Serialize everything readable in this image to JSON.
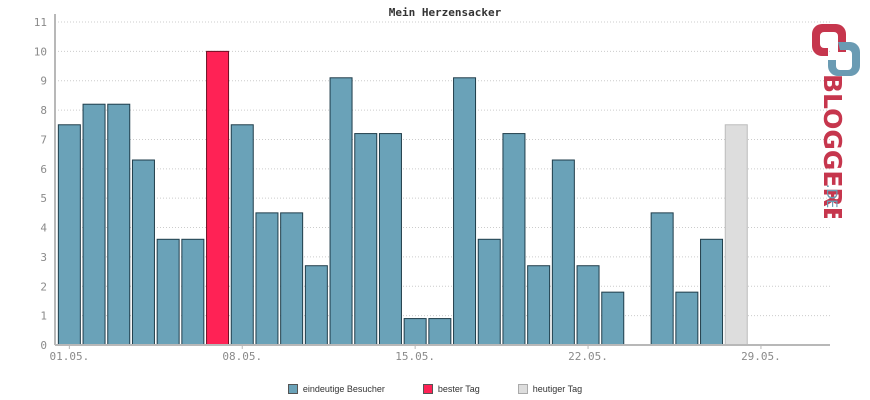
{
  "colors": {
    "visitor": "#6aa2b8",
    "best": "#ff2255",
    "today": "#dddddd",
    "grid": "#cccccc",
    "axis": "#b8b8b8"
  },
  "legend": {
    "visitor": "eindeutige Besucher",
    "best": "bester Tag",
    "today": "heutiger Tag"
  },
  "logo": {
    "name": "BLOGGEREI",
    "suffix": ".DE"
  },
  "chart_data": {
    "type": "bar",
    "title": "Mein Herzensacker",
    "ylim": [
      0,
      11
    ],
    "yticks": [
      0,
      1,
      2,
      3,
      4,
      5,
      6,
      7,
      8,
      9,
      10,
      11
    ],
    "x_tick_labels": [
      "01.05.",
      "08.05.",
      "15.05.",
      "22.05.",
      "29.05."
    ],
    "x_tick_days": [
      1,
      8,
      15,
      22,
      29
    ],
    "grid": true,
    "legend_position": "bottom",
    "days": [
      1,
      2,
      3,
      4,
      5,
      6,
      7,
      8,
      9,
      10,
      11,
      12,
      13,
      14,
      15,
      16,
      17,
      18,
      19,
      20,
      21,
      22,
      23,
      24,
      25,
      26,
      27,
      28,
      29,
      30,
      31
    ],
    "values": [
      7.5,
      8.2,
      8.2,
      6.3,
      3.6,
      3.6,
      10,
      7.5,
      4.5,
      4.5,
      2.7,
      9.1,
      7.2,
      7.2,
      0.9,
      0.9,
      9.1,
      3.6,
      7.2,
      2.7,
      6.3,
      2.7,
      1.8,
      0,
      4.5,
      1.8,
      3.6,
      7.5,
      0,
      0,
      0
    ],
    "kinds": [
      "v",
      "v",
      "v",
      "v",
      "v",
      "v",
      "best",
      "v",
      "v",
      "v",
      "v",
      "v",
      "v",
      "v",
      "v",
      "v",
      "v",
      "v",
      "v",
      "v",
      "v",
      "v",
      "v",
      "v",
      "v",
      "v",
      "v",
      "today",
      "v",
      "v",
      "v"
    ]
  }
}
